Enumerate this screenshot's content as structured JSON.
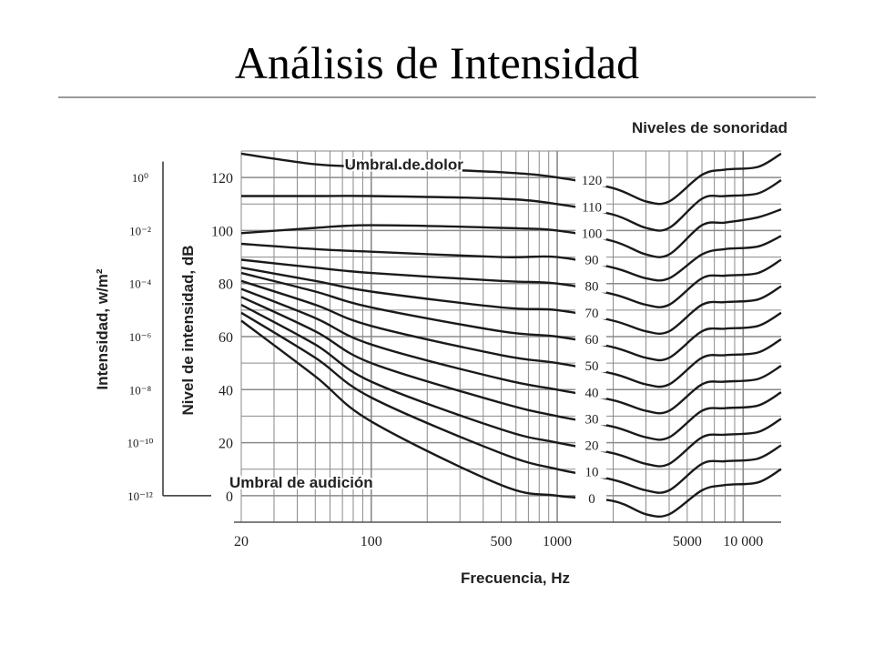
{
  "slide": {
    "title": "Análisis de Intensidad"
  },
  "chart_data": {
    "type": "line",
    "title": "Niveles de sonoridad",
    "xlabel": "Frecuencia, Hz",
    "ylabel": "Nivel de intensidad, dB",
    "ylabel_secondary": "Intensidad, w/m²",
    "x_scale": "log",
    "xlim": [
      20,
      16000
    ],
    "ylim": [
      -10,
      130
    ],
    "x_ticks": [
      20,
      100,
      500,
      1000,
      5000,
      10000
    ],
    "x_tick_labels": [
      "20",
      "100",
      "500",
      "1000",
      "5000",
      "10 000"
    ],
    "y_ticks": [
      0,
      20,
      40,
      60,
      80,
      100,
      120
    ],
    "y_tick_labels": [
      "0",
      "20",
      "40",
      "60",
      "80",
      "100",
      "120"
    ],
    "intensity_ticks": [
      {
        "db": 120,
        "label": "10⁰"
      },
      {
        "db": 100,
        "label": "10⁻²"
      },
      {
        "db": 80,
        "label": "10⁻⁴"
      },
      {
        "db": 60,
        "label": "10⁻⁶"
      },
      {
        "db": 40,
        "label": "10⁻⁸"
      },
      {
        "db": 20,
        "label": "10⁻¹⁰"
      },
      {
        "db": 0,
        "label": "10⁻¹²"
      }
    ],
    "grid": true,
    "annotations": [
      {
        "text": "Umbral de dolor",
        "x": 150,
        "y": 123
      },
      {
        "text": "Umbral de audición",
        "x": 42,
        "y": 3
      }
    ],
    "series": [
      {
        "name": "120",
        "x": [
          20,
          50,
          100,
          500,
          1000,
          2000,
          3000,
          4000,
          6000,
          8000,
          12000,
          16000
        ],
        "y": [
          129,
          125,
          124,
          122,
          120,
          116,
          111,
          111,
          121,
          123,
          124,
          129
        ]
      },
      {
        "name": "110",
        "x": [
          20,
          50,
          100,
          500,
          1000,
          2000,
          3000,
          4000,
          6000,
          8000,
          12000,
          16000
        ],
        "y": [
          113,
          113,
          113,
          112,
          110,
          106,
          101,
          101,
          112,
          113,
          114,
          119
        ]
      },
      {
        "name": "100",
        "x": [
          20,
          50,
          100,
          500,
          1000,
          2000,
          3000,
          4000,
          6000,
          8000,
          12000,
          16000
        ],
        "y": [
          99,
          101,
          102,
          101,
          100,
          96,
          91,
          91,
          102,
          103,
          105,
          108
        ]
      },
      {
        "name": "90",
        "x": [
          20,
          50,
          100,
          500,
          1000,
          2000,
          3000,
          4000,
          6000,
          8000,
          12000,
          16000
        ],
        "y": [
          95,
          93,
          92,
          90,
          90,
          86,
          82,
          82,
          91,
          93,
          94,
          98
        ]
      },
      {
        "name": "80",
        "x": [
          20,
          50,
          100,
          500,
          1000,
          2000,
          3000,
          4000,
          6000,
          8000,
          12000,
          16000
        ],
        "y": [
          89,
          86,
          84,
          81,
          80,
          76,
          72,
          72,
          82,
          83,
          84,
          89
        ]
      },
      {
        "name": "70",
        "x": [
          20,
          50,
          100,
          500,
          1000,
          2000,
          3000,
          4000,
          6000,
          8000,
          12000,
          16000
        ],
        "y": [
          86,
          81,
          77,
          71,
          70,
          66,
          62,
          62,
          72,
          73,
          74,
          79
        ]
      },
      {
        "name": "60",
        "x": [
          20,
          50,
          100,
          500,
          1000,
          2000,
          3000,
          4000,
          6000,
          8000,
          12000,
          16000
        ],
        "y": [
          84,
          77,
          71,
          62,
          60,
          56,
          52,
          52,
          62,
          63,
          64,
          69
        ]
      },
      {
        "name": "50",
        "x": [
          20,
          50,
          100,
          500,
          1000,
          2000,
          3000,
          4000,
          6000,
          8000,
          12000,
          16000
        ],
        "y": [
          81,
          72,
          64,
          53,
          50,
          46,
          42,
          42,
          52,
          53,
          54,
          59
        ]
      },
      {
        "name": "40",
        "x": [
          20,
          50,
          100,
          500,
          1000,
          2000,
          3000,
          4000,
          6000,
          8000,
          12000,
          16000
        ],
        "y": [
          78,
          67,
          57,
          44,
          40,
          36,
          32,
          32,
          42,
          43,
          44,
          49
        ]
      },
      {
        "name": "30",
        "x": [
          20,
          50,
          100,
          500,
          1000,
          2000,
          3000,
          4000,
          6000,
          8000,
          12000,
          16000
        ],
        "y": [
          75,
          62,
          50,
          35,
          30,
          26,
          22,
          22,
          32,
          33,
          34,
          39
        ]
      },
      {
        "name": "20",
        "x": [
          20,
          50,
          100,
          500,
          1000,
          2000,
          3000,
          4000,
          6000,
          8000,
          12000,
          16000
        ],
        "y": [
          72,
          57,
          43,
          25,
          20,
          16,
          12,
          12,
          22,
          23,
          24,
          29
        ]
      },
      {
        "name": "10",
        "x": [
          20,
          50,
          100,
          500,
          1000,
          2000,
          3000,
          4000,
          6000,
          8000,
          12000,
          16000
        ],
        "y": [
          69,
          52,
          37,
          16,
          10,
          6,
          2,
          2,
          12,
          13,
          14,
          19
        ]
      },
      {
        "name": "0",
        "x": [
          20,
          50,
          100,
          500,
          1000,
          2000,
          3000,
          4000,
          6000,
          8000,
          12000,
          16000
        ],
        "y": [
          66,
          45,
          28,
          4,
          0,
          -2,
          -7,
          -7,
          2,
          4,
          5,
          10
        ]
      }
    ],
    "colors": {
      "lines": "#1a1a1a",
      "grid": "#8a8a8a",
      "text": "#222222"
    }
  }
}
